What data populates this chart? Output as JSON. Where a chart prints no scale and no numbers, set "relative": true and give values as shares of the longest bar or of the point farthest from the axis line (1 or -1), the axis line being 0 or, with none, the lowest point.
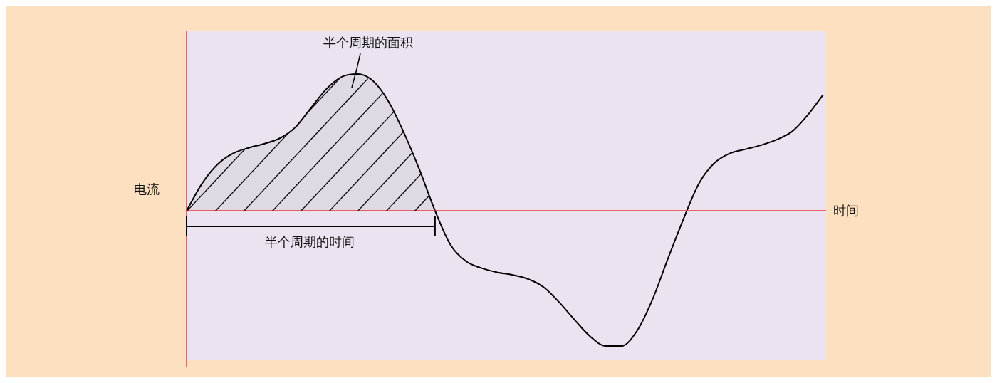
{
  "chart_data": {
    "type": "line",
    "relative": true,
    "xlabel": "时间",
    "ylabel": "电流",
    "categories": [
      null,
      null,
      null,
      null,
      null,
      null,
      null,
      null,
      null,
      null,
      null,
      null,
      null,
      null,
      null,
      null,
      null,
      null,
      null,
      null,
      null,
      null,
      null,
      null,
      null,
      null,
      null,
      null,
      null,
      null,
      null,
      null,
      null,
      null,
      null,
      null,
      null,
      null,
      null,
      null,
      null,
      null
    ],
    "series": [
      {
        "color": "#000000",
        "values": [
          0,
          0.2,
          0.34,
          0.42,
          0.46,
          0.49,
          0.53,
          0.61,
          0.75,
          0.89,
          0.98,
          1,
          0.95,
          0.8,
          0.57,
          0.3,
          0,
          -0.25,
          -0.37,
          -0.42,
          -0.45,
          -0.47,
          -0.5,
          -0.56,
          -0.67,
          -0.8,
          -0.92,
          -0.99,
          -0.99,
          -0.88,
          -0.65,
          -0.35,
          -0.06,
          0.2,
          0.35,
          0.42,
          0.45,
          0.48,
          0.52,
          0.58,
          0.7,
          0.85
        ]
      },
      {
        "type": "area",
        "color": "#000000",
        "values": [
          0,
          0.2,
          0.34,
          0.42,
          0.46,
          0.49,
          0.53,
          0.61,
          0.75,
          0.89,
          0.98,
          1,
          0.95,
          0.8,
          0.57,
          0.3,
          0,
          null,
          null,
          null,
          null,
          null,
          null,
          null,
          null,
          null,
          null,
          null,
          null,
          null,
          null,
          null,
          null,
          null,
          null,
          null,
          null,
          null,
          null,
          null,
          null,
          null
        ]
      }
    ],
    "ref_lines": [
      {
        "axis": "y",
        "value": 0,
        "color": "#e8363c"
      }
    ],
    "annotations": [
      "半个周期的面积",
      "半个周期的时间"
    ]
  }
}
